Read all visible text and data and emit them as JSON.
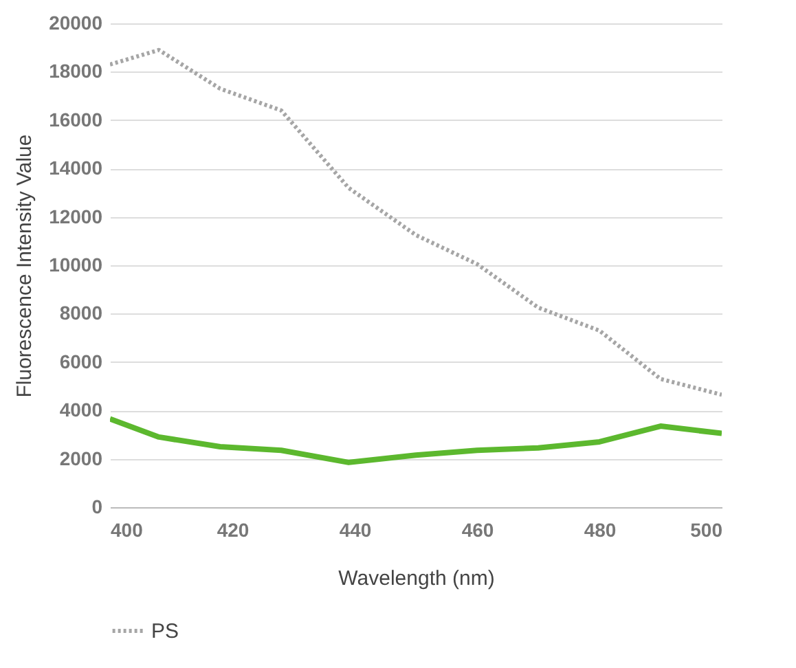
{
  "chart_data": {
    "type": "line",
    "xlabel": "Wavelength (nm)",
    "ylabel": "Fluorescence Intensity Value",
    "x": [
      400,
      408,
      418,
      428,
      439,
      450,
      460,
      470,
      480,
      490,
      500
    ],
    "xlim": [
      400,
      500
    ],
    "xticks": [
      400,
      420,
      440,
      460,
      480,
      500
    ],
    "ylim": [
      0,
      20000
    ],
    "yticks": [
      0,
      2000,
      4000,
      6000,
      8000,
      10000,
      12000,
      14000,
      16000,
      18000,
      20000
    ],
    "grid": "y",
    "legend": "bottom",
    "series": [
      {
        "color": "#5cb82e",
        "line_style": "solid",
        "values": [
          3650,
          2900,
          2500,
          2350,
          1850,
          2150,
          2350,
          2450,
          2700,
          3350,
          3050
        ]
      },
      {
        "name": "PS",
        "color": "#a6a6a6",
        "line_style": "dotted",
        "values": [
          18300,
          18900,
          17300,
          16400,
          13200,
          11250,
          10050,
          8250,
          7300,
          5300,
          4650
        ]
      }
    ]
  }
}
